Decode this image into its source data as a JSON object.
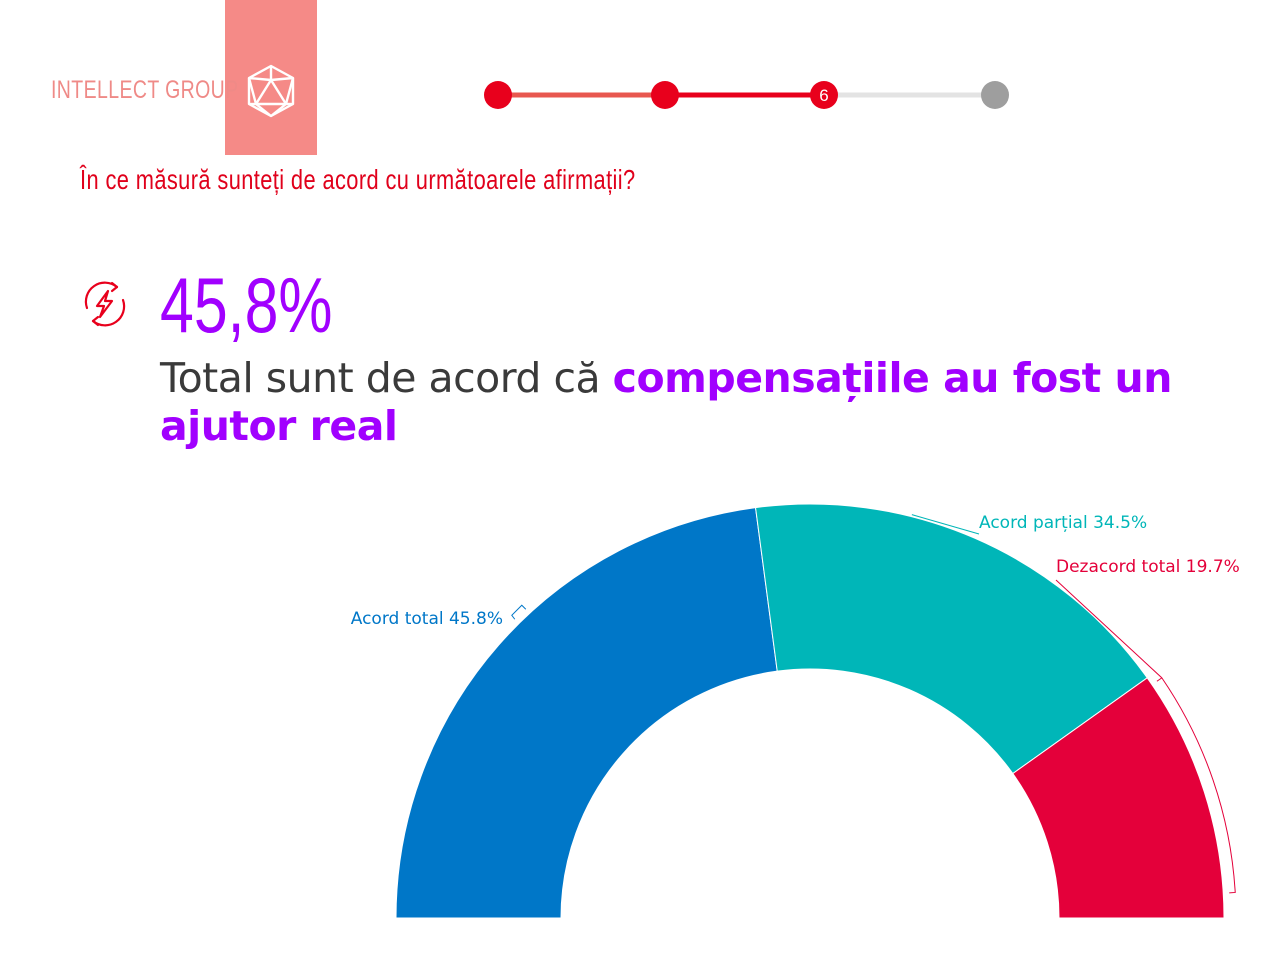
{
  "brand": {
    "name": "INTELLECT GROUP",
    "accent": "#f58a87"
  },
  "progress": {
    "current_step": "6",
    "dot_color": "#e8001c",
    "inactive_color": "#9e9e9e"
  },
  "question": "În ce măsură sunteți de acord cu următoarele afirmații?",
  "stat": {
    "icon": "lightning-cycle-icon",
    "value": "45,8%",
    "text_plain": "Total sunt de acord că ",
    "text_emphasis": "compensațiile au fost un ajutor real"
  },
  "chart_data": {
    "type": "pie",
    "shape": "semicircle-donut",
    "series": [
      {
        "category": "Acord total",
        "value": 45.8,
        "label": "Acord total 45.8%",
        "color": "#0077c8"
      },
      {
        "category": "Acord parțial",
        "value": 34.5,
        "label": "Acord parțial 34.5%",
        "color": "#00b6b8"
      },
      {
        "category": "Dezacord total",
        "value": 19.7,
        "label": "Dezacord total 19.7%",
        "color": "#e4003a"
      }
    ]
  }
}
